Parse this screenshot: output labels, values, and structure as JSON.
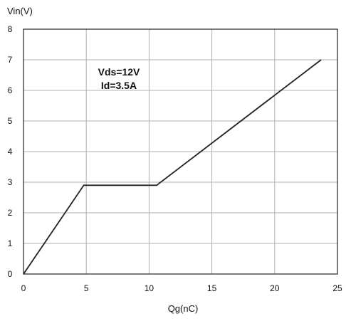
{
  "chart_data": {
    "type": "line",
    "title": "",
    "xlabel": "Qg(nC)",
    "ylabel": "Vin(V)",
    "xlim": [
      0,
      25
    ],
    "ylim": [
      0,
      8
    ],
    "xticks": [
      "0",
      "5",
      "10",
      "15",
      "20",
      "25"
    ],
    "yticks": [
      "0",
      "1",
      "2",
      "3",
      "4",
      "5",
      "6",
      "7",
      "8"
    ],
    "grid": true,
    "annotations": [
      "Vds=12V",
      "Id=3.5A"
    ],
    "series": [
      {
        "x": [
          0,
          4.8,
          10.6,
          23.7
        ],
        "y": [
          0,
          2.9,
          2.9,
          7.0
        ]
      }
    ],
    "colors": {
      "line": "#222222",
      "grid": "#b0b0b0",
      "frame": "#222222"
    }
  }
}
